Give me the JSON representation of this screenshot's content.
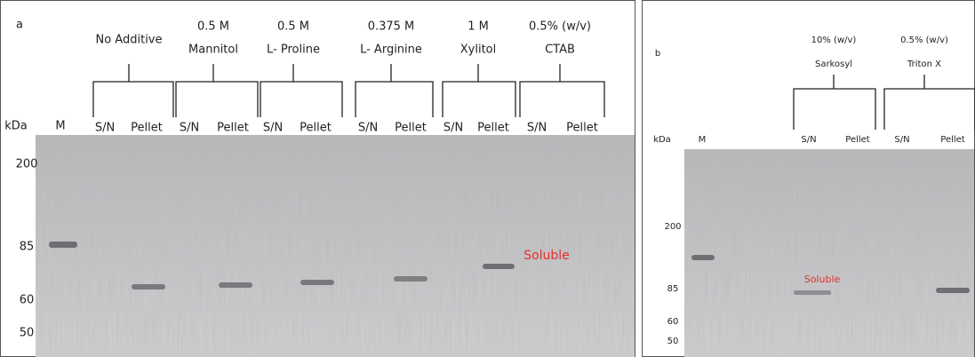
{
  "panels": [
    {
      "label": "a",
      "groups": [
        {
          "name": "No Additive"
        },
        {
          "conc": "0.5 M",
          "name": "Mannitol"
        },
        {
          "conc": "0.5 M",
          "name": "L- Proline"
        },
        {
          "conc": "0.375 M",
          "name": "L- Arginine"
        },
        {
          "conc": "1 M",
          "name": "Xylitol"
        },
        {
          "conc": "0.5% (w/v)",
          "name": "CTAB"
        }
      ],
      "lanes": [
        "S/N",
        "Pellet",
        "S/N",
        "Pellet",
        "S/N",
        "Pellet",
        "S/N",
        "Pellet",
        "S/N",
        "Pellet",
        "S/N",
        "Pellet"
      ],
      "unit": "kDa",
      "marker_lane": "M",
      "markers": [
        "200",
        "85",
        "60",
        "50"
      ],
      "annotation": "Soluble"
    },
    {
      "label": "b",
      "groups": [
        {
          "conc": "10% (w/v)",
          "name": "Sarkosyl"
        },
        {
          "conc": "0.5% (w/v)",
          "name": "Triton X"
        }
      ],
      "lanes": [
        "S/N",
        "Pellet",
        "S/N",
        "Pellet"
      ],
      "unit": "kDa",
      "marker_lane": "M",
      "markers": [
        "200",
        "85",
        "60",
        "50"
      ],
      "annotation": "Soluble"
    }
  ]
}
